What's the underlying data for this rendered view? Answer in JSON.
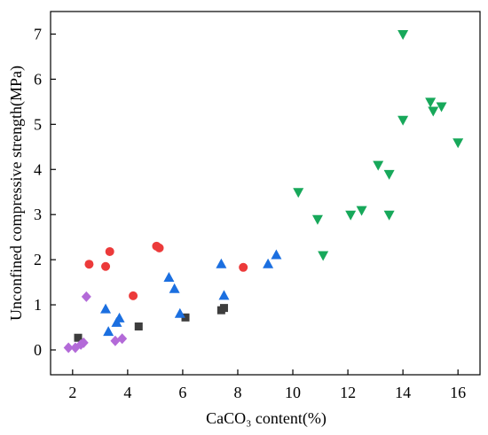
{
  "chart_data": {
    "type": "scatter",
    "title": "",
    "xlabel": "CaCO₃ content(%)",
    "ylabel": "Unconfined compressive strength(MPa)",
    "xlim": [
      1.2,
      16.8
    ],
    "ylim": [
      -0.55,
      7.5
    ],
    "x_ticks": [
      2,
      4,
      6,
      8,
      10,
      12,
      14,
      16
    ],
    "y_ticks": [
      0,
      1,
      2,
      3,
      4,
      5,
      6,
      7
    ],
    "grid": false,
    "legend": "none",
    "series": [
      {
        "marker": "square",
        "color": "#3d3d3d",
        "points": [
          [
            2.2,
            0.27
          ],
          [
            4.4,
            0.52
          ],
          [
            6.1,
            0.72
          ],
          [
            7.4,
            0.88
          ],
          [
            7.5,
            0.93
          ]
        ]
      },
      {
        "marker": "circle",
        "color": "#ec3a3a",
        "points": [
          [
            2.6,
            1.9
          ],
          [
            3.2,
            1.85
          ],
          [
            3.35,
            2.18
          ],
          [
            4.2,
            1.2
          ],
          [
            5.05,
            2.3
          ],
          [
            5.15,
            2.26
          ],
          [
            8.2,
            1.83
          ]
        ]
      },
      {
        "marker": "triangle-up",
        "color": "#1b6fe0",
        "points": [
          [
            3.2,
            0.9
          ],
          [
            3.3,
            0.4
          ],
          [
            3.6,
            0.6
          ],
          [
            3.7,
            0.7
          ],
          [
            5.5,
            1.6
          ],
          [
            5.7,
            1.35
          ],
          [
            5.9,
            0.8
          ],
          [
            7.4,
            1.9
          ],
          [
            7.5,
            1.2
          ],
          [
            9.1,
            1.9
          ],
          [
            9.4,
            2.1
          ]
        ]
      },
      {
        "marker": "triangle-down",
        "color": "#17a85a",
        "points": [
          [
            10.2,
            3.5
          ],
          [
            10.9,
            2.9
          ],
          [
            11.1,
            2.1
          ],
          [
            12.1,
            3.0
          ],
          [
            12.5,
            3.1
          ],
          [
            13.1,
            4.1
          ],
          [
            13.5,
            3.9
          ],
          [
            13.5,
            3.0
          ],
          [
            14.0,
            7.0
          ],
          [
            14.0,
            5.1
          ],
          [
            15.0,
            5.5
          ],
          [
            15.1,
            5.3
          ],
          [
            15.4,
            5.4
          ],
          [
            16.0,
            4.6
          ]
        ]
      },
      {
        "marker": "diamond",
        "color": "#b36ad8",
        "points": [
          [
            1.85,
            0.05
          ],
          [
            2.1,
            0.05
          ],
          [
            2.3,
            0.12
          ],
          [
            2.4,
            0.16
          ],
          [
            2.5,
            1.18
          ],
          [
            3.55,
            0.2
          ],
          [
            3.8,
            0.25
          ]
        ]
      }
    ]
  }
}
